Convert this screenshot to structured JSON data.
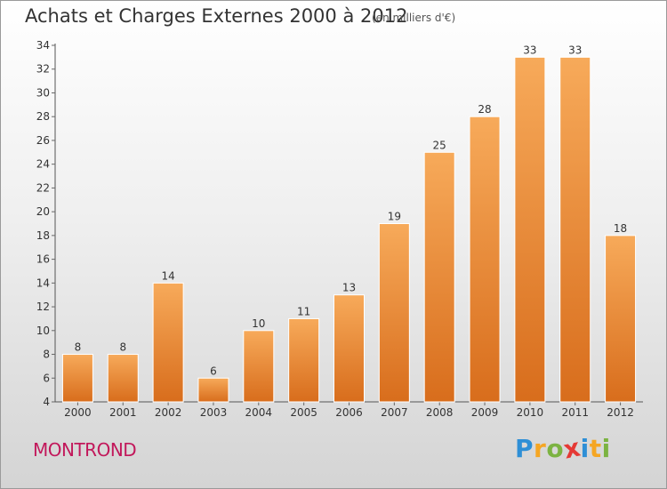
{
  "header": {
    "title": "Achats et Charges Externes 2000 à 2012",
    "subtitle": "(en milliers d'€)"
  },
  "footer": {
    "town": "MONTROND",
    "logo": "Proxiti",
    "logo_letters": [
      {
        "char": "P",
        "color": "#2e8fd6"
      },
      {
        "char": "r",
        "color": "#f5a623"
      },
      {
        "char": "o",
        "color": "#7cb342"
      },
      {
        "char": "x",
        "color": "#e53935"
      },
      {
        "char": "i",
        "color": "#2e8fd6"
      },
      {
        "char": "t",
        "color": "#f5a623"
      },
      {
        "char": "i",
        "color": "#7cb342"
      }
    ]
  },
  "colors": {
    "bar_top": "#f7aa5a",
    "bar_bottom": "#d86d1c",
    "bar_edge": "#ffffff",
    "axis": "#555555",
    "grid_tick": "#666666"
  },
  "chart_data": {
    "type": "bar",
    "title": "Achats et Charges Externes 2000 à 2012",
    "subtitle": "(en milliers d'€)",
    "categories": [
      "2000",
      "2001",
      "2002",
      "2003",
      "2004",
      "2005",
      "2006",
      "2007",
      "2008",
      "2009",
      "2010",
      "2011",
      "2012"
    ],
    "values": [
      8,
      8,
      14,
      6,
      10,
      11,
      13,
      19,
      25,
      28,
      33,
      33,
      18
    ],
    "ylim": [
      4,
      34
    ],
    "yticks": [
      4,
      6,
      8,
      10,
      12,
      14,
      16,
      18,
      20,
      22,
      24,
      26,
      28,
      30,
      32,
      34
    ],
    "xlabel": "",
    "ylabel": "",
    "grid": false,
    "data_labels": true
  }
}
